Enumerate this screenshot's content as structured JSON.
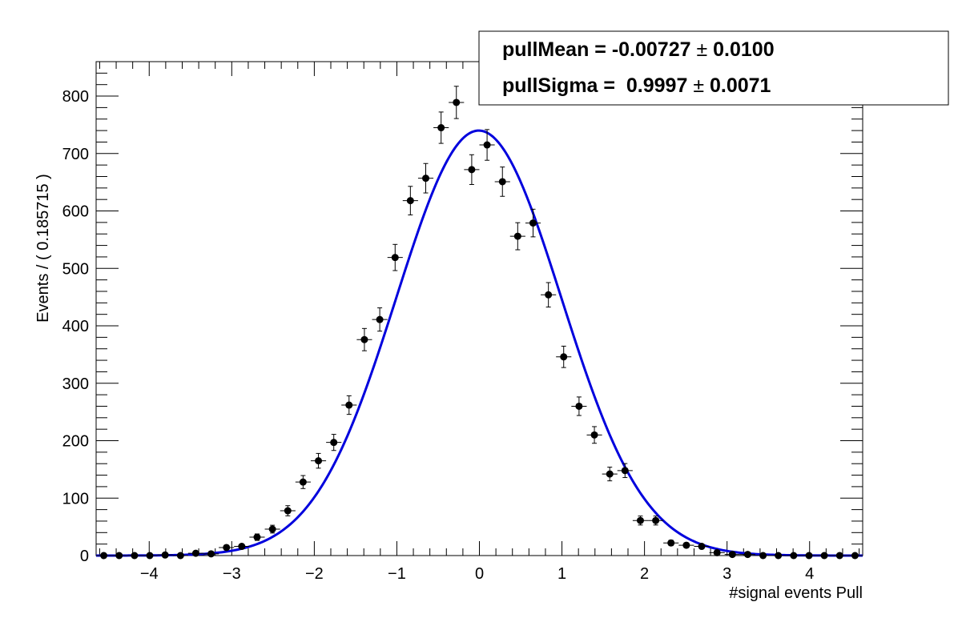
{
  "chart_data": {
    "type": "scatter",
    "xlabel": "#signal events Pull",
    "ylabel": "Events / ( 0.185715 )",
    "xlim": [
      -4.643,
      4.643
    ],
    "ylim": [
      0,
      860
    ],
    "bin_width": 0.185715,
    "x_ticks": [
      -4,
      -3,
      -2,
      -1,
      0,
      1,
      2,
      3,
      4
    ],
    "x_tick_labels": [
      "−4",
      "−3",
      "−2",
      "−1",
      "0",
      "1",
      "2",
      "3",
      "4"
    ],
    "y_ticks": [
      0,
      100,
      200,
      300,
      400,
      500,
      600,
      700,
      800
    ],
    "y_tick_labels": [
      "0",
      "100",
      "200",
      "300",
      "400",
      "500",
      "600",
      "700",
      "800"
    ],
    "grid": false,
    "series": [
      {
        "kind": "data_points_with_errors",
        "color": "#000000",
        "x": [
          -4.55,
          -4.364,
          -4.178,
          -3.993,
          -3.807,
          -3.621,
          -3.436,
          -3.25,
          -3.064,
          -2.879,
          -2.693,
          -2.507,
          -2.321,
          -2.136,
          -1.95,
          -1.764,
          -1.579,
          -1.393,
          -1.207,
          -1.021,
          -0.836,
          -0.65,
          -0.464,
          -0.279,
          -0.093,
          0.093,
          0.279,
          0.464,
          0.65,
          0.836,
          1.021,
          1.207,
          1.393,
          1.579,
          1.764,
          1.95,
          2.136,
          2.321,
          2.507,
          2.693,
          2.879,
          3.064,
          3.25,
          3.436,
          3.621,
          3.807,
          3.993,
          4.178,
          4.364,
          4.55
        ],
        "y": [
          0,
          0,
          0,
          0,
          1,
          0,
          4,
          3,
          14,
          16,
          32,
          46,
          78,
          128,
          165,
          197,
          262,
          376,
          411,
          519,
          618,
          657,
          745,
          789,
          672,
          715,
          651,
          556,
          579,
          454,
          346,
          260,
          210,
          142,
          148,
          61,
          61,
          22,
          18,
          16,
          5,
          2,
          2,
          0,
          0,
          0,
          0,
          0,
          0,
          0
        ]
      },
      {
        "kind": "gaussian_fit",
        "color": "#0000dd",
        "mean": -0.00727,
        "sigma": 0.9997,
        "peak": 740
      }
    ],
    "annotations": {
      "line1_label": "pullMean = -0.00727 ",
      "line1_pm": "±",
      "line1_err": " 0.0100",
      "line2_label": "pullSigma =  0.9997 ",
      "line2_pm": "±",
      "line2_err": " 0.0071"
    },
    "legend_position": "top-right"
  }
}
